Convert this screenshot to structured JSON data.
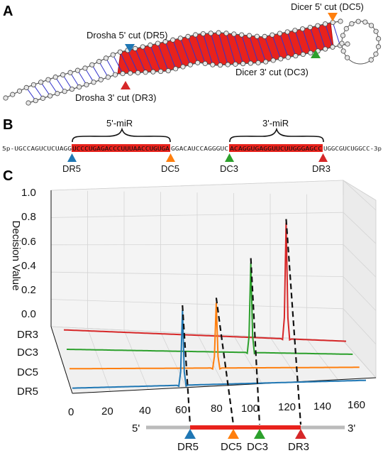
{
  "panels": {
    "a": "A",
    "b": "B",
    "c": "C"
  },
  "panel_a": {
    "drosha5": "Drosha 5' cut (DR5)",
    "drosha3": "Drosha 3' cut (DR3)",
    "dicer5": "Dicer 5' cut (DC5)",
    "dicer3": "Dicer 3' cut (DC3)"
  },
  "panel_b": {
    "mir5_label": "5'-miR",
    "mir3_label": "3'-miR",
    "seq_start": "5p-UGCCAGUCUCUAGG",
    "seq_mir5": "UCCCUGAGACCCUUUAACCUGUGA",
    "seq_loop": "GGACAUCCAGGGUC",
    "seq_mir3": "ACAGGUGAGGUUCUUGGGAGCC",
    "seq_end": "UGGCGUCUGGCC-3p",
    "markers": [
      "DR5",
      "DC5",
      "DC3",
      "DR3"
    ]
  },
  "panel_c": {
    "ylabel": "Decision Value",
    "z_ticks": [
      "1.0",
      "0.8",
      "0.6",
      "0.4",
      "0.2",
      "0.0"
    ],
    "series_ticks": [
      "DR3",
      "DC3",
      "DC5",
      "DR5"
    ],
    "x_ticks": [
      "0",
      "20",
      "40",
      "60",
      "80",
      "100",
      "120",
      "140",
      "160"
    ],
    "bar_5": "5'",
    "bar_3": "3'",
    "bar_markers": [
      "DR5",
      "DC5",
      "DC3",
      "DR3"
    ]
  },
  "colors": {
    "dr5": "#1f77b4",
    "dc5": "#ff7f0e",
    "dc3": "#2ca02c",
    "dr3": "#d62728",
    "mir": "#e8221c"
  },
  "chart_data": {
    "type": "line",
    "xlabel": "",
    "ylabel": "Decision Value",
    "ylim": [
      0,
      1.0
    ],
    "xlim": [
      0,
      160
    ],
    "series": [
      {
        "name": "DR5",
        "peak_x": 60,
        "peak_value": 0.63
      },
      {
        "name": "DC5",
        "peak_x": 81,
        "peak_value": 0.55
      },
      {
        "name": "DC3",
        "peak_x": 103,
        "peak_value": 0.75
      },
      {
        "name": "DR3",
        "peak_x": 126,
        "peak_value": 0.97
      }
    ]
  }
}
